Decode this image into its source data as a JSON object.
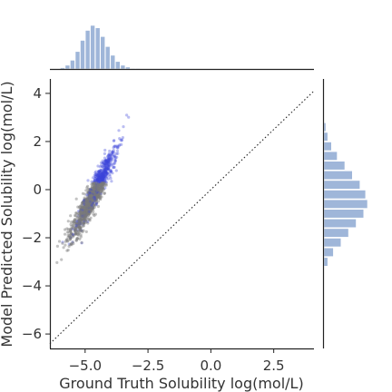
{
  "chart_data": {
    "type": "scatter",
    "title": "",
    "xlabel": "Ground Truth Solubility log(mol/L)",
    "ylabel": "Model Predicted Solubility log(mol/L)",
    "xlim": [
      -6.4,
      4.1
    ],
    "ylim": [
      -6.6,
      4.6
    ],
    "xticks": [
      -5.0,
      -2.5,
      0.0,
      2.5
    ],
    "yticks": [
      -6,
      -4,
      -2,
      0,
      2,
      4
    ],
    "xtick_labels": [
      "−5.0",
      "−2.5",
      "0.0",
      "2.5"
    ],
    "ytick_labels": [
      "−6",
      "−4",
      "−2",
      "0",
      "2",
      "4"
    ],
    "reference_line": {
      "style": "dotted",
      "color": "#222222",
      "from": [
        -6.4,
        -6.4
      ],
      "to": [
        4.1,
        4.1
      ]
    },
    "scatter_colors": {
      "low": "#7a7a7a",
      "high": "#3b46d9"
    },
    "marginal_color": "#9fb6d9",
    "grid": false,
    "marginal_x": {
      "bin_centers": [
        -5.9,
        -5.7,
        -5.5,
        -5.3,
        -5.1,
        -4.9,
        -4.7,
        -4.5,
        -4.3,
        -4.1,
        -3.9,
        -3.7,
        -3.5,
        -3.3,
        -3.1,
        -2.9
      ],
      "counts": [
        2,
        6,
        14,
        28,
        46,
        62,
        70,
        66,
        52,
        36,
        22,
        12,
        6,
        3,
        1,
        1
      ]
    },
    "marginal_y": {
      "bin_centers": [
        -3.0,
        -2.6,
        -2.2,
        -1.8,
        -1.4,
        -1.0,
        -0.6,
        -0.2,
        0.2,
        0.6,
        1.0,
        1.4,
        1.8,
        2.2,
        2.6
      ],
      "counts": [
        4,
        10,
        18,
        26,
        34,
        42,
        46,
        44,
        38,
        30,
        22,
        14,
        8,
        4,
        2
      ]
    },
    "density_ridge": {
      "x": [
        -5.8,
        -5.4,
        -5.0,
        -4.6,
        -4.2,
        -3.8,
        -3.4
      ],
      "y": [
        -2.2,
        -1.6,
        -0.9,
        -0.1,
        0.7,
        1.5,
        2.5
      ]
    }
  }
}
